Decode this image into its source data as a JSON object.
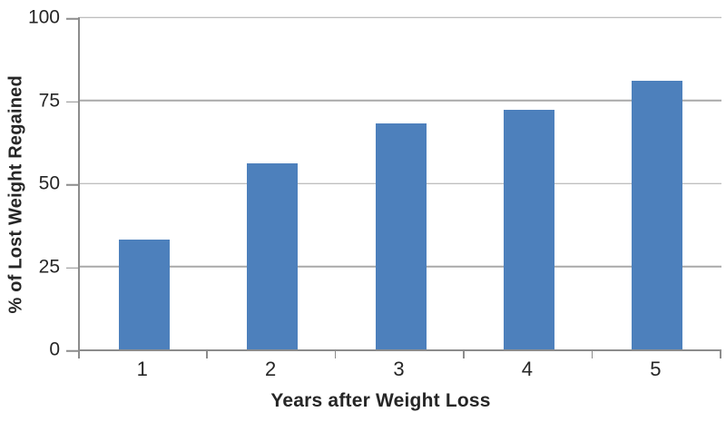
{
  "chart_data": {
    "type": "bar",
    "title": "",
    "categories": [
      "1",
      "2",
      "3",
      "4",
      "5"
    ],
    "values": [
      33,
      56,
      68,
      72,
      81
    ],
    "xlabel": "Years after Weight Loss",
    "ylabel": "% of Lost Weight Regained",
    "ylim": [
      0,
      100
    ],
    "yticks": [
      0,
      25,
      50,
      75,
      100
    ],
    "grid": true,
    "legend": false,
    "colors": {
      "bar": "#4d80bc",
      "gridline": "#a9a9a9",
      "axis": "#8c8c8c",
      "text": "#262626",
      "background": "#ffffff"
    }
  }
}
